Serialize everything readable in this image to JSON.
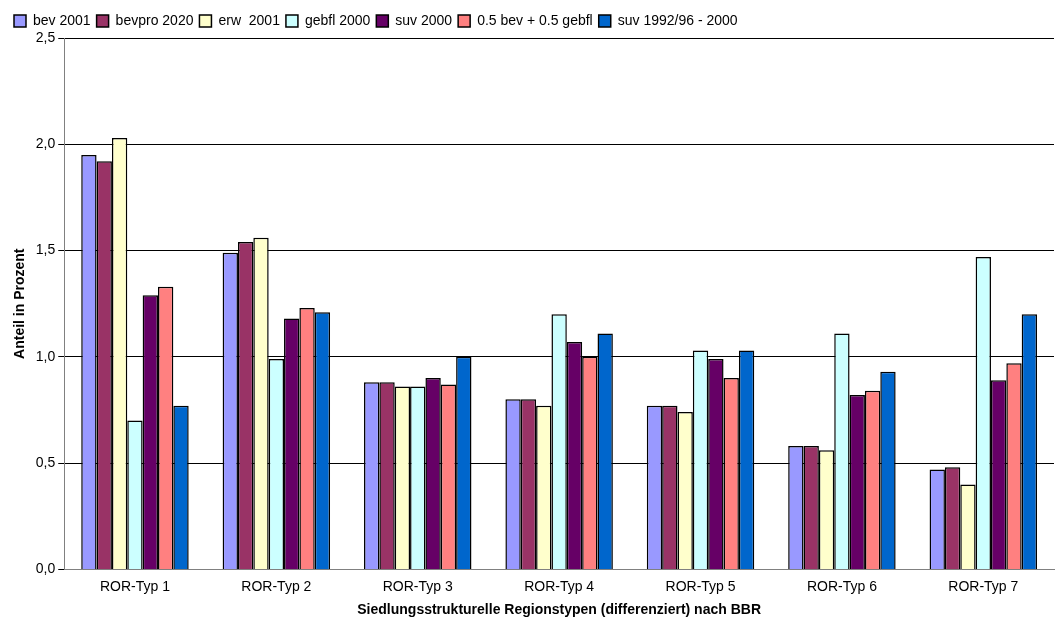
{
  "chart_data": {
    "type": "bar",
    "xlabel": "Siedlungsstrukturelle Regionstypen (differenziert) nach BBR",
    "ylabel": "Anteil in Prozent",
    "categories": [
      "ROR-Typ 1",
      "ROR-Typ 2",
      "ROR-Typ 3",
      "ROR-Typ 4",
      "ROR-Typ 5",
      "ROR-Typ 6",
      "ROR-Typ 7"
    ],
    "series": [
      {
        "name": "bev 2001",
        "color": "#9999ff",
        "values": [
          1.95,
          1.49,
          0.88,
          0.8,
          0.77,
          0.58,
          0.47
        ]
      },
      {
        "name": "bevpro 2020",
        "color": "#993366",
        "values": [
          1.92,
          1.54,
          0.88,
          0.8,
          0.77,
          0.58,
          0.48
        ]
      },
      {
        "name": "erw  2001",
        "color": "#ffffcc",
        "values": [
          2.03,
          1.56,
          0.86,
          0.77,
          0.74,
          0.56,
          0.4
        ]
      },
      {
        "name": "gebfl 2000",
        "color": "#ccffff",
        "values": [
          0.7,
          0.99,
          0.86,
          1.2,
          1.03,
          1.11,
          1.47
        ]
      },
      {
        "name": "suv 2000",
        "color": "#660066",
        "values": [
          1.29,
          1.18,
          0.9,
          1.07,
          0.99,
          0.82,
          0.89
        ]
      },
      {
        "name": "0.5 bev + 0.5 gebfl",
        "color": "#ff8080",
        "values": [
          1.33,
          1.23,
          0.87,
          1.0,
          0.9,
          0.84,
          0.97
        ]
      },
      {
        "name": "suv 1992/96 - 2000",
        "color": "#0066cc",
        "values": [
          0.77,
          1.21,
          1.0,
          1.11,
          1.03,
          0.93,
          1.2
        ]
      }
    ],
    "ylim": [
      0,
      2.5
    ],
    "yticks": [
      {
        "value": 0,
        "label": "0,0"
      },
      {
        "value": 0.5,
        "label": "0,5"
      },
      {
        "value": 1,
        "label": "1,0"
      },
      {
        "value": 1.5,
        "label": "1,5"
      },
      {
        "value": 2,
        "label": "2,0"
      },
      {
        "value": 2.5,
        "label": "2,5"
      }
    ],
    "grid": "y",
    "legend": "top"
  }
}
